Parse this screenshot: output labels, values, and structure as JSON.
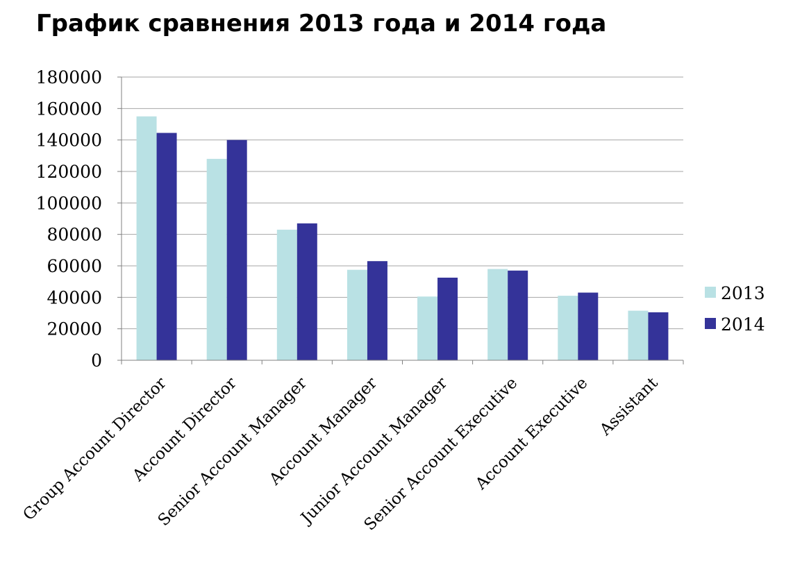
{
  "chart_data": {
    "type": "bar",
    "title": "График сравнения 2013 года и 2014 года",
    "xlabel": "",
    "ylabel": "",
    "categories": [
      "Group Account Director",
      "Account Director",
      "Senior Account Manager",
      "Account Manager",
      "Junior Account Manager",
      "Senior Account Executive",
      "Account Executive",
      "Assistant"
    ],
    "series": [
      {
        "name": "2013",
        "color": "#b9e1e4",
        "values": [
          155000,
          128000,
          83000,
          57500,
          40500,
          58000,
          41000,
          31500
        ]
      },
      {
        "name": "2014",
        "color": "#343399",
        "values": [
          144500,
          140000,
          87000,
          63000,
          52500,
          57000,
          43000,
          30500
        ]
      }
    ],
    "ylim": [
      0,
      180000
    ],
    "yticks": [
      "0",
      "20000",
      "40000",
      "60000",
      "80000",
      "100000",
      "120000",
      "140000",
      "160000",
      "180000"
    ],
    "grid": true,
    "legend": "right",
    "gridline_color": "#a6a6a6",
    "axis_color": "#808080"
  }
}
